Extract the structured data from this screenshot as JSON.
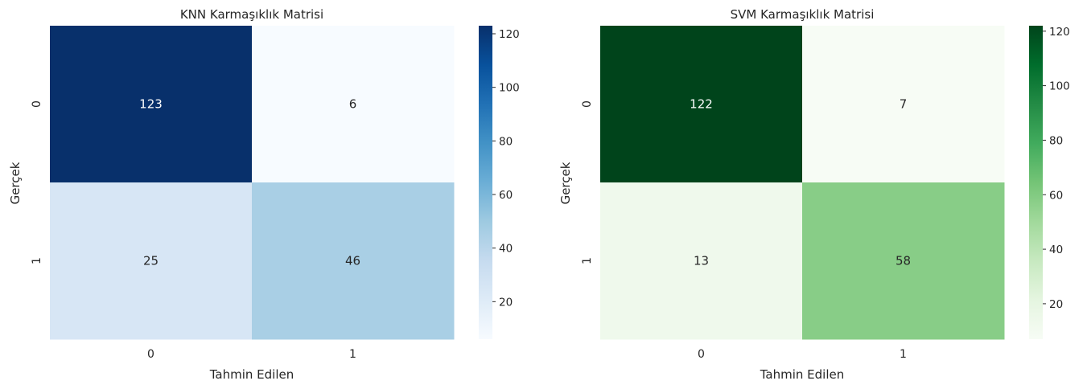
{
  "chart_data": [
    {
      "type": "heatmap",
      "title": "KNN Karmaşıklık Matrisi",
      "xlabel": "Tahmin Edilen",
      "ylabel": "Gerçek",
      "x_categories": [
        "0",
        "1"
      ],
      "y_categories": [
        "0",
        "1"
      ],
      "values": [
        [
          123,
          6
        ],
        [
          25,
          46
        ]
      ],
      "colormap": "Blues",
      "colorbar": {
        "range": [
          6,
          123
        ],
        "ticks": [
          20,
          40,
          60,
          80,
          100,
          120
        ]
      },
      "grid": false
    },
    {
      "type": "heatmap",
      "title": "SVM Karmaşıklık Matrisi",
      "xlabel": "Tahmin Edilen",
      "ylabel": "Gerçek",
      "x_categories": [
        "0",
        "1"
      ],
      "y_categories": [
        "0",
        "1"
      ],
      "values": [
        [
          122,
          7
        ],
        [
          13,
          58
        ]
      ],
      "colormap": "Greens",
      "colorbar": {
        "range": [
          7,
          122
        ],
        "ticks": [
          20,
          40,
          60,
          80,
          100,
          120
        ]
      },
      "grid": false
    }
  ],
  "colormaps": {
    "Blues": [
      "#f7fbff",
      "#deebf7",
      "#c6dbef",
      "#9ecae1",
      "#6baed6",
      "#4292c6",
      "#2171b5",
      "#08519c",
      "#08306b"
    ],
    "Greens": [
      "#f7fcf5",
      "#e5f5e0",
      "#c7e9c0",
      "#a1d99b",
      "#74c476",
      "#41ab5d",
      "#238b45",
      "#006d2c",
      "#00441b"
    ]
  }
}
